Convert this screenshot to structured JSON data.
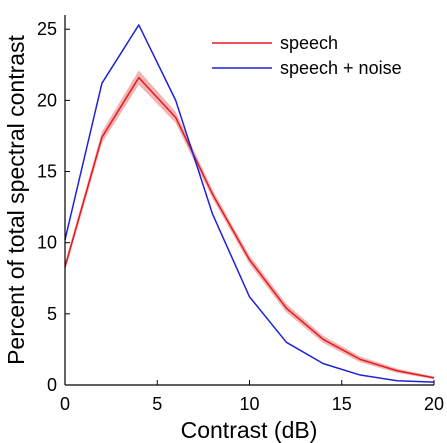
{
  "chart_data": {
    "type": "line",
    "xlabel": "Contrast (dB)",
    "ylabel": "Percent of total spectral contrast",
    "xlim": [
      0,
      20
    ],
    "ylim": [
      0,
      26
    ],
    "xticks": [
      0,
      5,
      10,
      15,
      20
    ],
    "yticks": [
      0,
      5,
      10,
      15,
      20,
      25
    ],
    "grid": false,
    "legend_position": "top-right",
    "series": [
      {
        "name": "speech",
        "color": "#e8191e",
        "band_color": "#f0b4b4",
        "x": [
          0,
          2,
          4,
          6,
          8,
          10,
          12,
          14,
          16,
          18,
          20
        ],
        "y": [
          8.3,
          17.4,
          21.6,
          18.8,
          13.4,
          8.8,
          5.4,
          3.2,
          1.8,
          1.0,
          0.5
        ],
        "band": [
          0.3,
          0.4,
          0.5,
          0.4,
          0.3,
          0.3,
          0.3,
          0.25,
          0.2,
          0.15,
          0.1
        ]
      },
      {
        "name": "speech + noise",
        "color": "#1d24d6",
        "x": [
          0,
          2,
          4,
          6,
          8,
          10,
          12,
          14,
          16,
          18,
          20
        ],
        "y": [
          10.2,
          21.2,
          25.3,
          20.0,
          12.0,
          6.2,
          3.0,
          1.5,
          0.7,
          0.3,
          0.2
        ]
      }
    ]
  }
}
